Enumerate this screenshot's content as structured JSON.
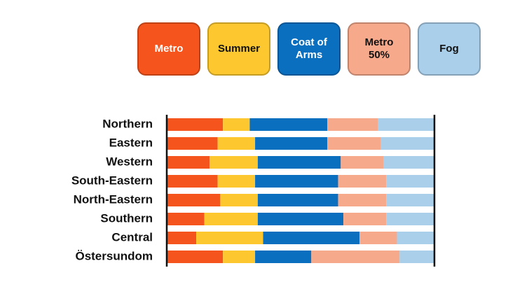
{
  "chart_data": {
    "type": "stacked-bar-horizontal",
    "categories": [
      "Northern",
      "Eastern",
      "Western",
      "South-Eastern",
      "North-Eastern",
      "Southern",
      "Central",
      "Östersundom"
    ],
    "series": [
      {
        "name": "Metro",
        "color": "#f5541d",
        "values": [
          21,
          19,
          16,
          19,
          20,
          14,
          11,
          21
        ]
      },
      {
        "name": "Summer",
        "color": "#fdc82f",
        "values": [
          10,
          14,
          18,
          14,
          14,
          20,
          25,
          12
        ]
      },
      {
        "name": "Coat of Arms",
        "color": "#0b6fc0",
        "values": [
          29,
          27,
          31,
          31,
          30,
          32,
          36,
          21
        ]
      },
      {
        "name": "Metro 50%",
        "color": "#f7a98c",
        "values": [
          19,
          20,
          16,
          18,
          18,
          16,
          14,
          33
        ]
      },
      {
        "name": "Fog",
        "color": "#a9cfeb",
        "values": [
          21,
          20,
          19,
          18,
          18,
          18,
          14,
          13
        ]
      }
    ]
  }
}
